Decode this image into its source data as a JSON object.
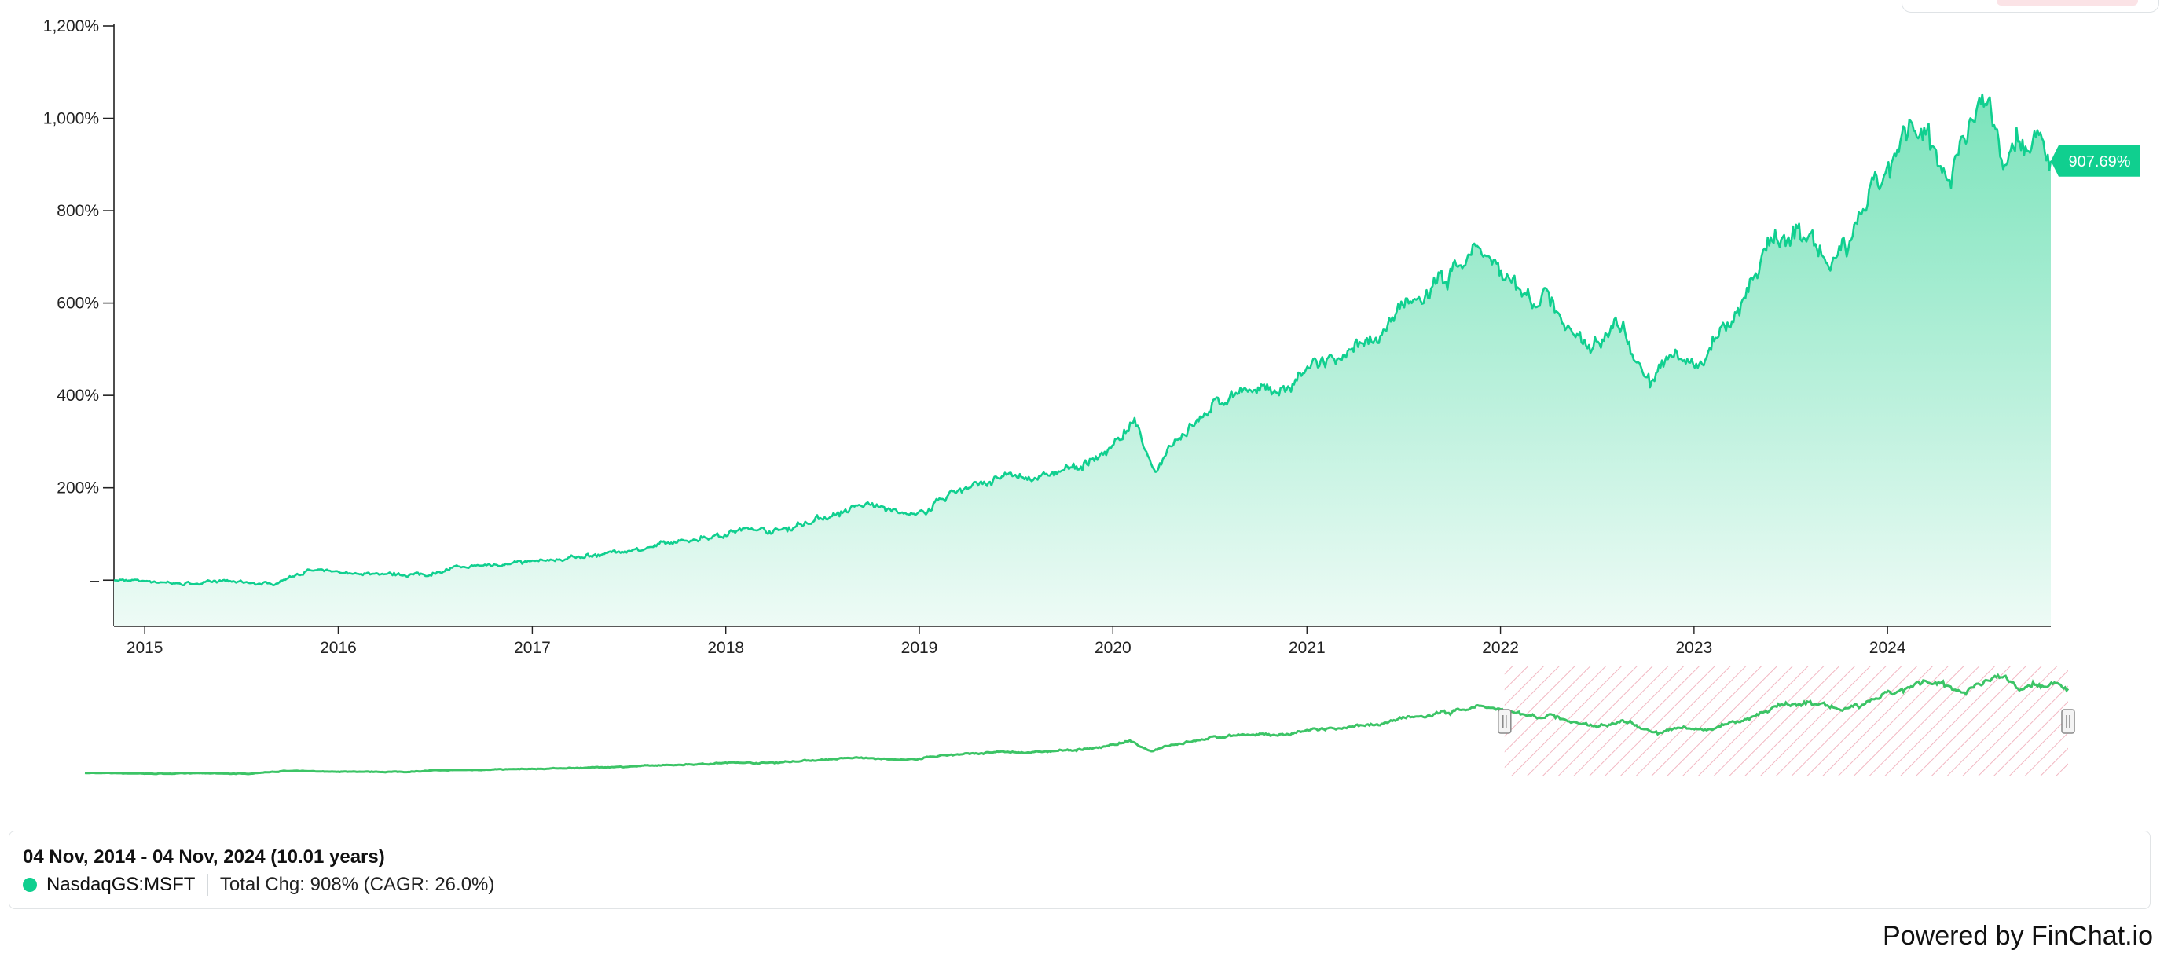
{
  "chart_data": {
    "type": "area",
    "series": [
      {
        "name": "NasdaqGS:MSFT",
        "x": [
          "2014-11-04",
          "2015-01-15",
          "2015-03-15",
          "2015-06-01",
          "2015-09-01",
          "2015-11-01",
          "2016-02-10",
          "2016-06-15",
          "2016-08-01",
          "2016-12-15",
          "2017-03-01",
          "2017-06-01",
          "2017-09-01",
          "2017-12-01",
          "2018-02-08",
          "2018-04-15",
          "2018-06-15",
          "2018-09-01",
          "2018-10-01",
          "2018-12-24",
          "2019-03-01",
          "2019-06-01",
          "2019-09-01",
          "2019-12-01",
          "2020-02-10",
          "2020-03-20",
          "2020-04-20",
          "2020-07-15",
          "2020-09-01",
          "2020-10-01",
          "2020-12-01",
          "2021-01-15",
          "2021-03-15",
          "2021-05-01",
          "2021-07-01",
          "2021-08-15",
          "2021-11-20",
          "2022-01-10",
          "2022-03-01",
          "2022-04-01",
          "2022-05-10",
          "2022-06-15",
          "2022-08-15",
          "2022-10-10",
          "2022-11-30",
          "2023-01-05",
          "2023-02-15",
          "2023-04-01",
          "2023-05-15",
          "2023-07-18",
          "2023-09-15",
          "2023-10-25",
          "2023-11-15",
          "2024-01-01",
          "2024-02-10",
          "2024-03-15",
          "2024-04-25",
          "2024-05-20",
          "2024-07-05",
          "2024-07-25",
          "2024-08-05",
          "2024-08-20",
          "2024-09-05",
          "2024-09-25",
          "2024-10-15",
          "2024-10-25",
          "2024-11-04"
        ],
        "y": [
          0,
          -2,
          -8,
          -3,
          -8,
          20,
          15,
          12,
          25,
          40,
          45,
          60,
          75,
          95,
          110,
          108,
          130,
          155,
          165,
          135,
          190,
          220,
          225,
          260,
          340,
          225,
          300,
          380,
          420,
          400,
          420,
          465,
          475,
          520,
          580,
          620,
          720,
          650,
          600,
          620,
          530,
          520,
          560,
          430,
          490,
          450,
          540,
          600,
          720,
          760,
          680,
          720,
          800,
          880,
          960,
          960,
          880,
          960,
          1050,
          980,
          890,
          940,
          960,
          930,
          970,
          930,
          907.69
        ]
      }
    ],
    "ylim": [
      -100,
      1200
    ],
    "yticks": [
      {
        "value": 0,
        "label": "–"
      },
      {
        "value": 200,
        "label": "200%"
      },
      {
        "value": 400,
        "label": "400%"
      },
      {
        "value": 600,
        "label": "600%"
      },
      {
        "value": 800,
        "label": "800%"
      },
      {
        "value": 1000,
        "label": "1,000%"
      },
      {
        "value": 1200,
        "label": "1,200%"
      }
    ],
    "xticks": [
      "2015",
      "2016",
      "2017",
      "2018",
      "2019",
      "2020",
      "2021",
      "2022",
      "2023",
      "2024"
    ],
    "last_value_label": "907.69%",
    "navigator": {
      "selected_range": [
        "2022-01-01",
        "2024-11-04"
      ]
    }
  },
  "summary": {
    "date_range": "04 Nov, 2014 - 04 Nov, 2024 (10.01 years)",
    "ticker": "NasdaqGS:MSFT",
    "total_change": "Total Chg: 908% (CAGR: 26.0%)"
  },
  "footer": {
    "powered_by": "Powered by FinChat.io"
  },
  "colors": {
    "line": "#10cf8f",
    "area_top": "#7fe4bf",
    "area_bottom": "#eefbf6",
    "navigator_line": "#3cc466",
    "navigator_hatch": "#f2b7c2",
    "label_bg": "#10cf8f"
  }
}
